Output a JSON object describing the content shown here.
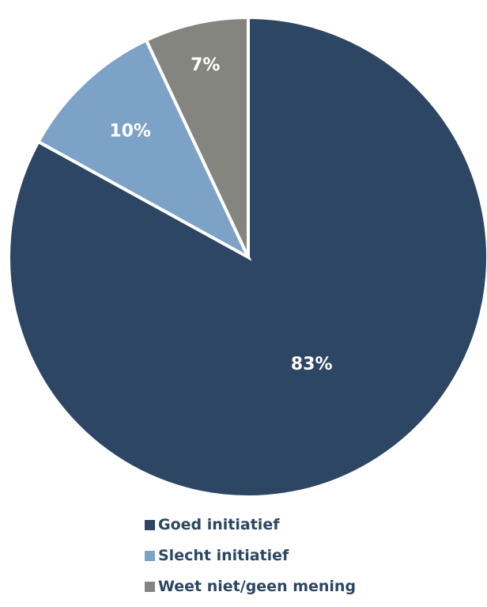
{
  "chart_data": {
    "type": "pie",
    "categories": [
      "Goed initiatief",
      "Slecht initiatief",
      "Weet niet/geen mening"
    ],
    "values": [
      83,
      10,
      7
    ],
    "data_labels": [
      "83%",
      "10%",
      "7%"
    ],
    "colors": [
      "#2d4663",
      "#7da2c7",
      "#858580"
    ],
    "start_angle_deg": 0,
    "direction": "clockwise",
    "legend_position": "bottom",
    "title": ""
  },
  "legend": {
    "items": [
      {
        "label": "Goed initiatief",
        "color": "#2d4663"
      },
      {
        "label": "Slecht initiatief",
        "color": "#7da2c7"
      },
      {
        "label": "Weet niet/geen mening",
        "color": "#858580"
      }
    ]
  }
}
